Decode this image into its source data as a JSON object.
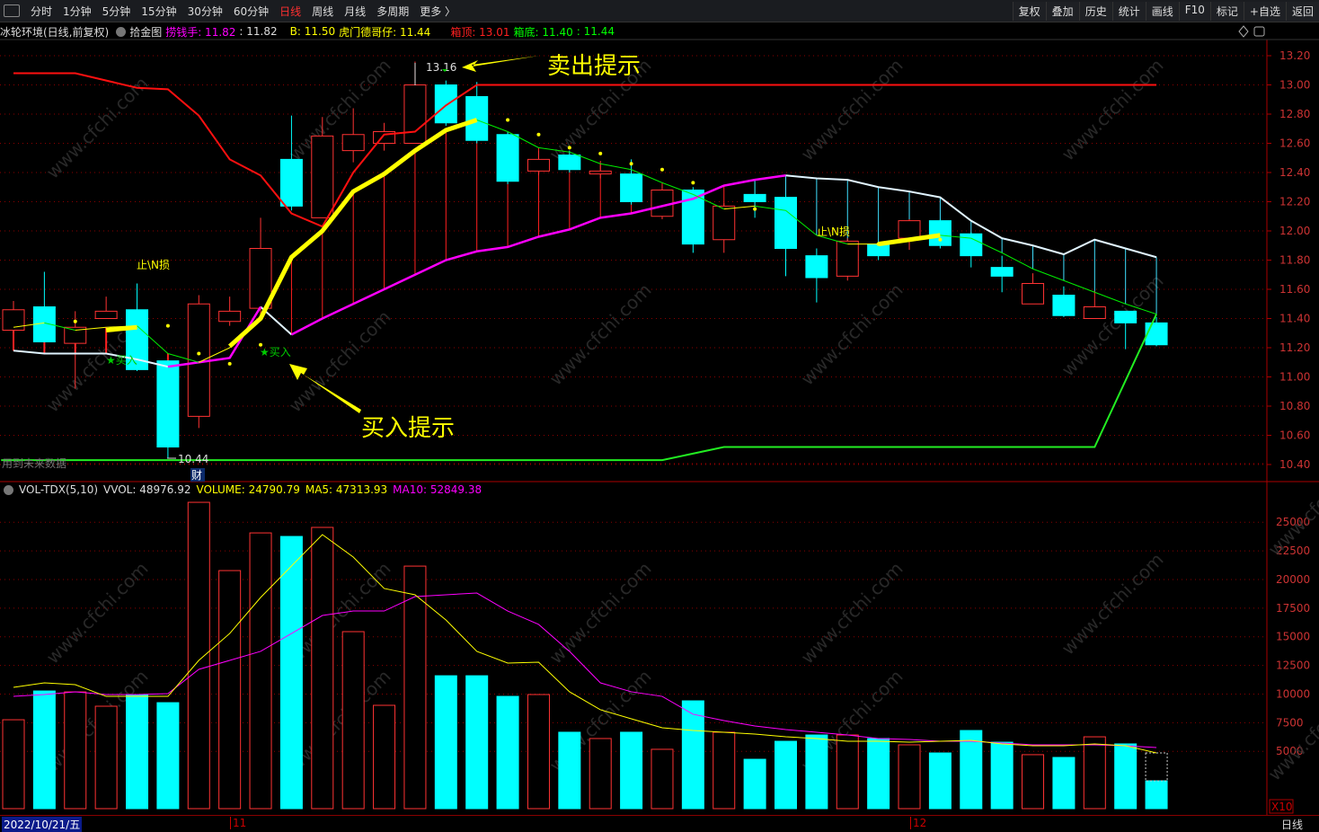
{
  "topbar": {
    "periods": [
      "分时",
      "1分钟",
      "5分钟",
      "15分钟",
      "30分钟",
      "60分钟",
      "日线",
      "周线",
      "月线",
      "多周期",
      "更多 〉"
    ],
    "active": "日线",
    "right": [
      "复权",
      "叠加",
      "历史",
      "统计",
      "画线",
      "F10",
      "标记",
      "+自选",
      "返回"
    ]
  },
  "header": {
    "stock": "冰轮环境(日线,前复权)",
    "indicator": "拾金图",
    "l1": "捞钱手: 11.82",
    "l1b": ": 11.82",
    "b": "B: 11.50",
    "l2": "虎门德哥仔: 11.44",
    "top": "箱顶: 13.01",
    "bottom": "箱底: 11.40",
    "last": ": 11.44"
  },
  "vol_header": {
    "name": "VOL-TDX(5,10)",
    "vvol": "VVOL: 48976.92",
    "volume": "VOLUME: 24790.79",
    "ma5": "MA5: 47313.93",
    "ma10": "MA10: 52849.38"
  },
  "annotations": {
    "sell": "卖出提示",
    "buy": "买入提示",
    "buy_mark": "★买入",
    "stop": "止\\N损",
    "high": "13.16",
    "low": "10.44",
    "future": "用到未来数据",
    "fin": "财",
    "watermark": "www.cfchi.com"
  },
  "bottom": {
    "date": "2022/10/21/五",
    "m11": "11",
    "m12": "12",
    "period": "日线",
    "x10": "X10"
  },
  "colors": {
    "up": "#ff3333",
    "down": "#00ffff",
    "ma_fast": "#ffff00",
    "ma_slow": "#ff00ff",
    "grid": "#8b0000"
  },
  "chart_data": [
    {
      "type": "candlestick",
      "ylim": [
        10.4,
        13.2
      ],
      "yticks": [
        "13.20",
        "13.00",
        "12.80",
        "12.60",
        "12.40",
        "12.20",
        "12.00",
        "11.80",
        "11.60",
        "11.40",
        "11.20",
        "11.00",
        "10.80",
        "10.60",
        "10.40"
      ],
      "ohlc": [
        [
          11.32,
          11.46,
          11.52,
          11.3
        ],
        [
          11.48,
          11.24,
          11.72,
          11.24
        ],
        [
          11.23,
          11.34,
          11.45,
          10.92
        ],
        [
          11.4,
          11.45,
          11.55,
          11.4
        ],
        [
          11.46,
          11.05,
          11.64,
          11.04
        ],
        [
          11.11,
          10.52,
          11.11,
          10.44
        ],
        [
          10.73,
          11.5,
          11.56,
          10.65
        ],
        [
          11.38,
          11.45,
          11.55,
          11.35
        ],
        [
          11.47,
          11.88,
          12.09,
          11.42
        ],
        [
          12.49,
          12.17,
          12.79,
          12.14
        ],
        [
          12.09,
          12.65,
          12.78,
          12.09
        ],
        [
          12.55,
          12.66,
          12.84,
          12.47
        ],
        [
          12.6,
          12.68,
          12.74,
          12.55
        ],
        [
          12.6,
          13.0,
          13.16,
          12.6
        ],
        [
          13.0,
          12.74,
          13.03,
          12.72
        ],
        [
          12.92,
          12.62,
          13.02,
          12.6
        ],
        [
          12.66,
          12.34,
          12.68,
          12.32
        ],
        [
          12.41,
          12.49,
          12.55,
          12.38
        ],
        [
          12.52,
          12.42,
          12.55,
          12.4
        ],
        [
          12.39,
          12.41,
          12.48,
          12.36
        ],
        [
          12.39,
          12.2,
          12.49,
          12.18
        ],
        [
          12.1,
          12.28,
          12.32,
          12.08
        ],
        [
          12.28,
          11.91,
          12.3,
          11.85
        ],
        [
          11.94,
          12.17,
          12.19,
          11.85
        ],
        [
          12.25,
          12.2,
          12.35,
          12.09
        ],
        [
          12.23,
          11.88,
          12.25,
          11.69
        ],
        [
          11.83,
          11.68,
          11.88,
          11.51
        ],
        [
          11.69,
          11.93,
          11.95,
          11.66
        ],
        [
          11.91,
          11.83,
          11.92,
          11.8
        ],
        [
          11.95,
          12.07,
          12.08,
          11.87
        ],
        [
          12.07,
          11.9,
          12.08,
          11.88
        ],
        [
          11.98,
          11.83,
          11.99,
          11.75
        ],
        [
          11.75,
          11.69,
          11.83,
          11.58
        ],
        [
          11.5,
          11.64,
          11.71,
          11.5
        ],
        [
          11.56,
          11.42,
          11.62,
          11.41
        ],
        [
          11.4,
          11.48,
          11.59,
          11.4
        ],
        [
          11.45,
          11.37,
          11.45,
          11.19
        ],
        [
          11.37,
          11.22,
          11.41,
          11.21
        ]
      ],
      "lines": {
        "red_upper": [
          [
            0,
            13.08
          ],
          [
            2,
            13.08
          ],
          [
            4,
            12.98
          ],
          [
            5,
            12.97
          ],
          [
            6,
            12.79
          ],
          [
            7,
            12.49
          ],
          [
            8,
            12.38
          ],
          [
            9,
            12.12
          ],
          [
            10,
            12.03
          ],
          [
            11,
            12.4
          ],
          [
            12,
            12.66
          ],
          [
            13,
            12.68
          ],
          [
            14,
            12.86
          ],
          [
            15,
            13.0
          ]
        ],
        "box_top": [
          [
            15,
            13.0
          ],
          [
            37,
            13.0
          ]
        ],
        "thick_yellow": [
          [
            [
              3,
              11.32
            ],
            [
              4,
              11.34
            ]
          ],
          [
            [
              7,
              11.21
            ],
            [
              8,
              11.4
            ],
            [
              9,
              11.82
            ],
            [
              10,
              12.0
            ],
            [
              11,
              12.27
            ],
            [
              12,
              12.39
            ],
            [
              13,
              12.55
            ],
            [
              14,
              12.69
            ],
            [
              15,
              12.76
            ]
          ],
          [
            [
              28,
              11.91
            ],
            [
              30,
              11.97
            ]
          ]
        ],
        "white": [
          [
            [
              0,
              11.18
            ],
            [
              1,
              11.16
            ],
            [
              2,
              11.16
            ],
            [
              3,
              11.16
            ],
            [
              4,
              11.12
            ],
            [
              5,
              11.07
            ]
          ],
          [
            [
              8,
              11.48
            ],
            [
              9,
              11.29
            ]
          ],
          [
            [
              25,
              12.38
            ],
            [
              26,
              12.36
            ],
            [
              27,
              12.35
            ],
            [
              28,
              12.3
            ],
            [
              29,
              12.27
            ],
            [
              30,
              12.23
            ],
            [
              31,
              12.07
            ],
            [
              32,
              11.95
            ],
            [
              33,
              11.9
            ],
            [
              34,
              11.84
            ],
            [
              35,
              11.94
            ],
            [
              36,
              11.88
            ],
            [
              37,
              11.82
            ]
          ]
        ],
        "magenta": [
          [
            [
              5,
              11.07
            ],
            [
              6,
              11.1
            ],
            [
              7,
              11.13
            ],
            [
              8,
              11.48
            ]
          ],
          [
            [
              9,
              11.29
            ],
            [
              10,
              11.4
            ],
            [
              11,
              11.5
            ],
            [
              12,
              11.6
            ],
            [
              13,
              11.7
            ],
            [
              14,
              11.8
            ],
            [
              15,
              11.86
            ],
            [
              16,
              11.89
            ],
            [
              17,
              11.96
            ],
            [
              18,
              12.01
            ],
            [
              19,
              12.09
            ],
            [
              20,
              12.12
            ],
            [
              21,
              12.17
            ],
            [
              22,
              12.22
            ],
            [
              23,
              12.31
            ],
            [
              24,
              12.35
            ],
            [
              25,
              12.38
            ]
          ]
        ],
        "thin_ma": [
          [
            [
              0,
              11.34
            ],
            [
              1,
              11.37
            ],
            [
              2,
              11.32
            ],
            [
              3,
              11.34
            ],
            [
              4,
              11.35
            ],
            [
              5,
              11.16
            ],
            [
              6,
              11.1
            ],
            [
              7,
              11.2
            ],
            [
              8,
              11.41
            ]
          ],
          [
            [
              15,
              12.76
            ],
            [
              16,
              12.68
            ],
            [
              17,
              12.57
            ],
            [
              18,
              12.54
            ],
            [
              19,
              12.46
            ],
            [
              20,
              12.42
            ],
            [
              21,
              12.33
            ],
            [
              22,
              12.25
            ],
            [
              23,
              12.15
            ],
            [
              24,
              12.17
            ],
            [
              25,
              12.14
            ],
            [
              26,
              11.97
            ],
            [
              27,
              11.91
            ],
            [
              28,
              11.91
            ],
            [
              29,
              11.95
            ],
            [
              30,
              11.97
            ],
            [
              31,
              11.95
            ],
            [
              32,
              11.85
            ],
            [
              33,
              11.74
            ],
            [
              34,
              11.66
            ],
            [
              35,
              11.58
            ],
            [
              36,
              11.5
            ],
            [
              37,
              11.43
            ]
          ]
        ],
        "green_bottom": [
          [
            -0.4,
            10.43
          ],
          [
            21,
            10.43
          ],
          [
            23,
            10.52
          ],
          [
            35,
            10.52
          ],
          [
            37,
            11.43
          ]
        ]
      },
      "dots": [
        [
          2,
          11.38
        ],
        [
          5,
          11.35
        ],
        [
          6,
          11.16
        ],
        [
          7,
          11.09
        ],
        [
          8,
          11.22
        ],
        [
          16,
          12.76
        ],
        [
          17,
          12.66
        ],
        [
          18,
          12.57
        ],
        [
          19,
          12.53
        ],
        [
          20,
          12.46
        ],
        [
          21,
          12.42
        ],
        [
          22,
          12.33
        ],
        [
          24,
          12.15
        ],
        [
          28,
          11.91
        ],
        [
          30,
          11.94
        ]
      ]
    },
    {
      "type": "bar",
      "ylim": [
        0,
        27500
      ],
      "yticks": [
        "25000",
        "22500",
        "20000",
        "17500",
        "15000",
        "12500",
        "10000",
        "7500",
        "5000"
      ],
      "volume": [
        7760,
        10270,
        10190,
        8940,
        9960,
        9250,
        26740,
        20780,
        24070,
        23760,
        24550,
        15450,
        9020,
        21170,
        11600,
        11600,
        9800,
        9960,
        6670,
        6120,
        6670,
        5180,
        9410,
        6670,
        4310,
        5880,
        6430,
        6430,
        6120,
        5570,
        4860,
        6820,
        5800,
        4710,
        4470,
        6270,
        5650,
        2430
      ],
      "volume_projected_last": 4860,
      "ma5": [
        10590,
        10980,
        10820,
        9800,
        9800,
        9800,
        12940,
        15290,
        18430,
        21180,
        23920,
        21960,
        19220,
        18670,
        16470,
        13730,
        12710,
        12780,
        10200,
        8630,
        7840,
        7060,
        6820,
        6670,
        6510,
        6270,
        6120,
        5880,
        5880,
        5800,
        5880,
        5960,
        5650,
        5490,
        5490,
        5650,
        5490,
        4860
      ],
      "ma10": [
        9800,
        9960,
        10200,
        9960,
        9960,
        10040,
        12160,
        12940,
        13730,
        15290,
        16860,
        17250,
        17250,
        18510,
        18670,
        18820,
        17250,
        16080,
        13730,
        10980,
        10200,
        9800,
        8240,
        7690,
        7220,
        6900,
        6670,
        6430,
        6120,
        6040,
        5880,
        5880,
        5730,
        5570,
        5570,
        5570,
        5490,
        5330
      ]
    }
  ]
}
